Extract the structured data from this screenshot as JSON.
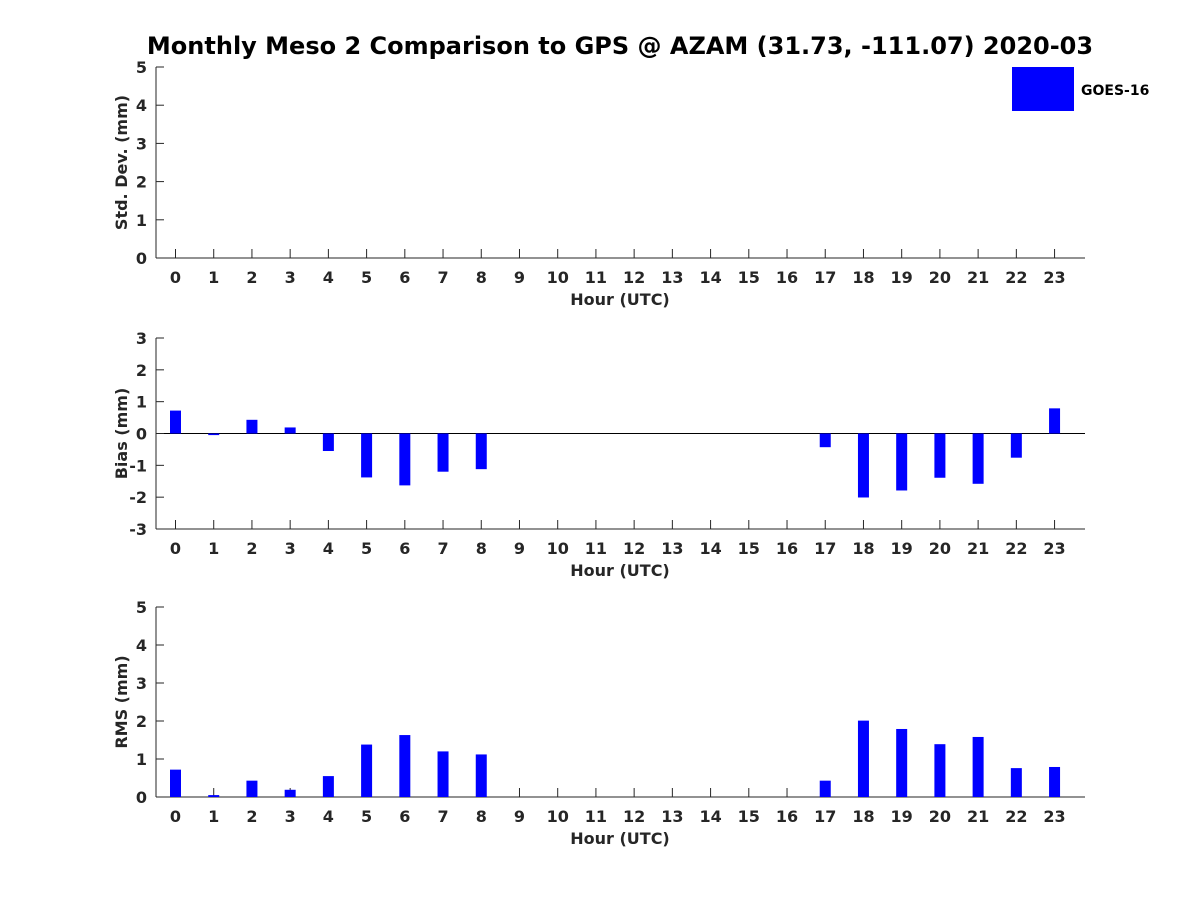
{
  "chart_data": {
    "title": "Monthly Meso 2 Comparison to GPS @ AZAM (31.73, -111.07) 2020-03",
    "legend": {
      "label": "GOES-16",
      "color": "#0000ff",
      "placement": "top-right"
    },
    "panels": [
      {
        "type": "bar",
        "key": "std",
        "ylabel": "Std. Dev. (mm)",
        "xlabel": "Hour (UTC)",
        "ylim": [
          0,
          5
        ],
        "yticks": [
          0,
          1,
          2,
          3,
          4,
          5
        ],
        "categories": [
          "0",
          "1",
          "2",
          "3",
          "4",
          "5",
          "6",
          "7",
          "8",
          "9",
          "10",
          "11",
          "12",
          "13",
          "14",
          "15",
          "16",
          "17",
          "18",
          "19",
          "20",
          "21",
          "22",
          "23"
        ],
        "series": [
          {
            "name": "GOES-16",
            "values": [
              0,
              0,
              0,
              0,
              0,
              0,
              0,
              0,
              0,
              0,
              0,
              0,
              0,
              0,
              0,
              0,
              0,
              0,
              0,
              0,
              0,
              0,
              0,
              0
            ]
          }
        ]
      },
      {
        "type": "bar",
        "key": "bias",
        "ylabel": "Bias (mm)",
        "xlabel": "Hour (UTC)",
        "ylim": [
          -3,
          3
        ],
        "yticks": [
          -3,
          -2,
          -1,
          0,
          1,
          2,
          3
        ],
        "categories": [
          "0",
          "1",
          "2",
          "3",
          "4",
          "5",
          "6",
          "7",
          "8",
          "9",
          "10",
          "11",
          "12",
          "13",
          "14",
          "15",
          "16",
          "17",
          "18",
          "19",
          "20",
          "21",
          "22",
          "23"
        ],
        "series": [
          {
            "name": "GOES-16",
            "values": [
              0.72,
              -0.05,
              0.43,
              0.19,
              -0.55,
              -1.38,
              -1.63,
              -1.2,
              -1.12,
              0,
              0,
              0,
              0,
              0,
              0,
              0,
              0,
              -0.43,
              -2.01,
              -1.79,
              -1.39,
              -1.58,
              -0.76,
              0.79
            ]
          }
        ]
      },
      {
        "type": "bar",
        "key": "rms",
        "ylabel": "RMS (mm)",
        "xlabel": "Hour (UTC)",
        "ylim": [
          0,
          5
        ],
        "yticks": [
          0,
          1,
          2,
          3,
          4,
          5
        ],
        "categories": [
          "0",
          "1",
          "2",
          "3",
          "4",
          "5",
          "6",
          "7",
          "8",
          "9",
          "10",
          "11",
          "12",
          "13",
          "14",
          "15",
          "16",
          "17",
          "18",
          "19",
          "20",
          "21",
          "22",
          "23"
        ],
        "series": [
          {
            "name": "GOES-16",
            "values": [
              0.72,
              0.05,
              0.43,
              0.19,
              0.55,
              1.38,
              1.63,
              1.2,
              1.12,
              0,
              0,
              0,
              0,
              0,
              0,
              0,
              0,
              0.43,
              2.01,
              1.79,
              1.39,
              1.58,
              0.76,
              0.79
            ]
          }
        ]
      }
    ]
  }
}
